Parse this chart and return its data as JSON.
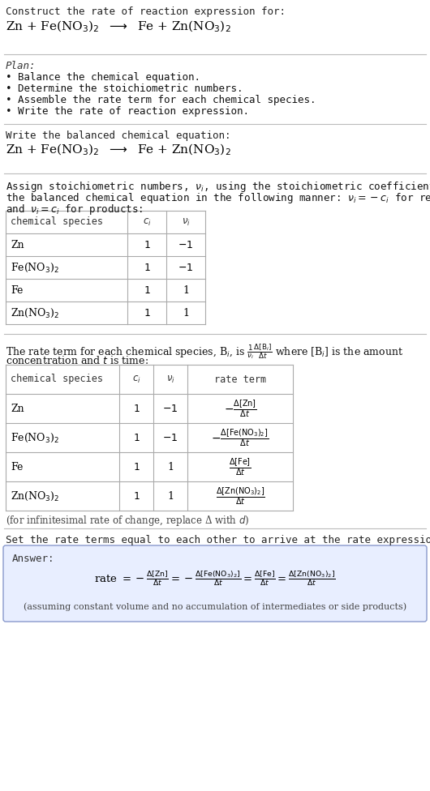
{
  "bg_color": "#ffffff",
  "text_color": "#000000",
  "gray_color": "#555555",
  "title_line1": "Construct the rate of reaction expression for:",
  "plan_title": "Plan:",
  "plan_items": [
    "• Balance the chemical equation.",
    "• Determine the stoichiometric numbers.",
    "• Assemble the rate term for each chemical species.",
    "• Write the rate of reaction expression."
  ],
  "balanced_label": "Write the balanced chemical equation:",
  "stoich_intro1": "Assign stoichiometric numbers, $\\nu_i$, using the stoichiometric coefficients, $c_i$, from",
  "stoich_intro2": "the balanced chemical equation in the following manner: $\\nu_i = -c_i$ for reactants",
  "stoich_intro3": "and $\\nu_i = c_i$ for products:",
  "table1_headers": [
    "chemical species",
    "$c_i$",
    "$\\nu_i$"
  ],
  "rate_intro1": "The rate term for each chemical species, B$_i$, is $\\frac{1}{\\nu_i}\\frac{\\Delta[\\mathrm{B}_i]}{\\Delta t}$ where [B$_i$] is the amount",
  "rate_intro2": "concentration and $t$ is time:",
  "table2_headers": [
    "chemical species",
    "$c_i$",
    "$\\nu_i$",
    "rate term"
  ],
  "infinitesimal_note": "(for infinitesimal rate of change, replace Δ with $d$)",
  "set_equal_text": "Set the rate terms equal to each other to arrive at the rate expression:",
  "answer_label": "Answer:",
  "answer_note": "(assuming constant volume and no accumulation of intermediates or side products)",
  "line_color": "#bbbbbb",
  "table_line_color": "#aaaaaa",
  "answer_box_color": "#e8eeff"
}
